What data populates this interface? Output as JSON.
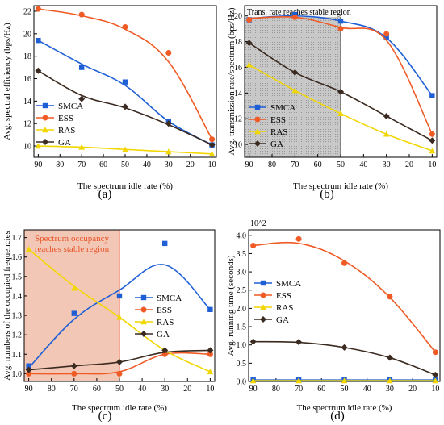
{
  "colors": {
    "SMCA": "#1f5fd6",
    "ESS": "#f05a24",
    "RAS": "#f2d600",
    "GA": "#3a2a20",
    "region_gray": "#c8c8c8",
    "region_red": "#f3c7b6"
  },
  "chart_data": [
    {
      "id": "a",
      "type": "line",
      "caption": "(a)",
      "xlabel": "The spectrum idle rate (%)",
      "ylabel": "Avg. spectral efficiency (bps/Hz)",
      "x_ticks": [
        90,
        80,
        70,
        60,
        50,
        40,
        30,
        20,
        10
      ],
      "y_ticks": [
        10,
        12,
        14,
        16,
        18,
        20,
        22
      ],
      "xlim": [
        92,
        8
      ],
      "ylim": [
        9,
        22.5
      ],
      "x": [
        90,
        70,
        50,
        30,
        10
      ],
      "legend": "center-left",
      "series": [
        {
          "name": "SMCA",
          "marker": "square",
          "points": [
            19.4,
            17.0,
            15.7,
            12.2,
            10.1
          ],
          "curve": [
            19.4,
            17.3,
            15.4,
            12.2,
            10.1
          ]
        },
        {
          "name": "ESS",
          "marker": "circle",
          "points": [
            22.2,
            21.7,
            20.6,
            18.3,
            10.6
          ],
          "curve": [
            22.2,
            21.6,
            20.4,
            17.5,
            10.6
          ]
        },
        {
          "name": "RAS",
          "marker": "triangle",
          "points": [
            10.0,
            9.9,
            9.7,
            9.5,
            9.3
          ],
          "curve": [
            10.0,
            9.9,
            9.7,
            9.5,
            9.3
          ]
        },
        {
          "name": "GA",
          "marker": "diamond",
          "points": [
            16.7,
            14.2,
            13.5,
            12.0,
            10.1
          ],
          "curve": [
            16.7,
            14.5,
            13.4,
            11.9,
            10.1
          ]
        }
      ]
    },
    {
      "id": "b",
      "type": "line",
      "caption": "(b)",
      "xlabel": "The spectrum idle rate (%)",
      "ylabel": "Avg. transmission rate/spectrum (bps/Hz)",
      "x_ticks": [
        90,
        80,
        70,
        60,
        50,
        40,
        30,
        20,
        10
      ],
      "y_ticks": [
        10,
        12,
        14,
        16,
        18,
        20
      ],
      "xlim": [
        92,
        8
      ],
      "ylim": [
        9,
        20.8
      ],
      "x": [
        90,
        70,
        50,
        30,
        10
      ],
      "legend": "center-left",
      "region": {
        "x0": 92,
        "x1": 50,
        "label": "Trans. rate reaches stable region"
      },
      "series": [
        {
          "name": "SMCA",
          "marker": "square",
          "points": [
            19.7,
            20.1,
            19.6,
            18.3,
            13.8
          ],
          "curve": [
            19.8,
            20.0,
            19.6,
            18.3,
            13.8
          ]
        },
        {
          "name": "ESS",
          "marker": "circle",
          "points": [
            19.7,
            19.9,
            19.0,
            18.6,
            10.8
          ],
          "curve": [
            19.8,
            19.9,
            19.1,
            18.1,
            10.8
          ]
        },
        {
          "name": "RAS",
          "marker": "triangle",
          "points": [
            16.2,
            14.2,
            12.4,
            10.8,
            9.5
          ],
          "curve": [
            16.2,
            14.2,
            12.4,
            10.8,
            9.5
          ]
        },
        {
          "name": "GA",
          "marker": "diamond",
          "points": [
            17.9,
            15.6,
            14.1,
            12.2,
            10.3
          ],
          "curve": [
            17.9,
            15.6,
            14.1,
            12.2,
            10.3
          ]
        }
      ]
    },
    {
      "id": "c",
      "type": "line",
      "caption": "(c)",
      "xlabel": "The spectrum idle rate (%)",
      "ylabel": "Avg. numbers of the occupied frequencies",
      "x_ticks": [
        90,
        80,
        70,
        60,
        50,
        40,
        30,
        20,
        10
      ],
      "y_ticks": [
        1.0,
        1.1,
        1.2,
        1.3,
        1.4,
        1.5,
        1.6,
        1.7
      ],
      "y_tick_labels": [
        "1.0",
        "1.1",
        "1.2",
        "1.3",
        "1.4",
        "1.5",
        "1.6",
        "1.7"
      ],
      "xlim": [
        92,
        8
      ],
      "ylim": [
        0.96,
        1.74
      ],
      "x": [
        90,
        70,
        50,
        30,
        10
      ],
      "legend": "center-right",
      "region": {
        "x0": 92,
        "x1": 50,
        "label_lines": [
          "Spectrum occupancy",
          "reaches stable region"
        ]
      },
      "series": [
        {
          "name": "SMCA",
          "marker": "square",
          "points": [
            1.04,
            1.31,
            1.4,
            1.67,
            1.33
          ],
          "curve": [
            1.03,
            1.28,
            1.43,
            1.56,
            1.33
          ]
        },
        {
          "name": "ESS",
          "marker": "circle",
          "points": [
            1.0,
            1.0,
            1.0,
            1.1,
            1.1
          ],
          "curve": [
            1.0,
            1.0,
            1.01,
            1.1,
            1.1
          ]
        },
        {
          "name": "RAS",
          "marker": "triangle",
          "points": [
            1.64,
            1.44,
            1.29,
            1.12,
            1.01
          ],
          "curve": [
            1.64,
            1.45,
            1.29,
            1.12,
            1.01
          ]
        },
        {
          "name": "GA",
          "marker": "diamond",
          "points": [
            1.02,
            1.04,
            1.06,
            1.12,
            1.12
          ],
          "curve": [
            1.02,
            1.04,
            1.06,
            1.11,
            1.12
          ]
        }
      ]
    },
    {
      "id": "d",
      "type": "line",
      "caption": "(d)",
      "xlabel": "The spectrum idle rate (%)",
      "ylabel": "Avg. running time (seconds)",
      "scale_note": "10^2",
      "x_ticks": [
        90,
        80,
        70,
        60,
        50,
        40,
        30,
        20,
        10
      ],
      "y_ticks": [
        0,
        0.5,
        1.0,
        1.5,
        2.0,
        2.5,
        3.0,
        3.5,
        4.0
      ],
      "y_tick_labels": [
        "0.0",
        "0.5",
        "1.0",
        "1.5",
        "2.0",
        "2.5",
        "3.0",
        "3.5",
        "4.0"
      ],
      "xlim": [
        92,
        8
      ],
      "ylim": [
        0,
        4.15
      ],
      "x": [
        90,
        70,
        50,
        30,
        10
      ],
      "legend": "top-left",
      "series": [
        {
          "name": "SMCA",
          "marker": "square",
          "points": [
            0.04,
            0.04,
            0.04,
            0.04,
            0.04
          ],
          "curve": [
            0.04,
            0.04,
            0.04,
            0.04,
            0.04
          ]
        },
        {
          "name": "ESS",
          "marker": "circle",
          "points": [
            3.72,
            3.9,
            3.24,
            2.32,
            0.8
          ],
          "curve": [
            3.72,
            3.78,
            3.3,
            2.3,
            0.8
          ]
        },
        {
          "name": "RAS",
          "marker": "triangle",
          "points": [
            0.02,
            0.02,
            0.02,
            0.02,
            0.02
          ],
          "curve": [
            0.02,
            0.02,
            0.02,
            0.02,
            0.02
          ]
        },
        {
          "name": "GA",
          "marker": "diamond",
          "points": [
            1.09,
            1.08,
            0.93,
            0.65,
            0.18
          ],
          "curve": [
            1.09,
            1.07,
            0.93,
            0.65,
            0.18
          ]
        }
      ]
    }
  ]
}
